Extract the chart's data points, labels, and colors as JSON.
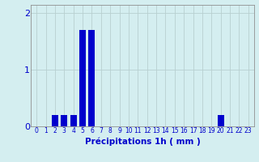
{
  "values": [
    0,
    0,
    0.2,
    0.2,
    0.2,
    1.7,
    1.7,
    0,
    0,
    0,
    0,
    0,
    0,
    0,
    0,
    0,
    0,
    0,
    0,
    0,
    0.2,
    0,
    0,
    0
  ],
  "bar_color": "#0000cc",
  "background_color": "#d4eef0",
  "grid_color": "#b8d0d0",
  "text_color": "#0000cc",
  "xlabel": "Précipitations 1h ( mm )",
  "ylim": [
    0,
    2.15
  ],
  "yticks": [
    0,
    1,
    2
  ],
  "bar_width": 0.7,
  "tick_labels": [
    "0",
    "1",
    "2",
    "3",
    "4",
    "5",
    "6",
    "7",
    "8",
    "9",
    "10",
    "11",
    "12",
    "13",
    "14",
    "15",
    "16",
    "17",
    "18",
    "19",
    "20",
    "21",
    "22",
    "23"
  ],
  "xlabel_fontsize": 7.5,
  "ytick_fontsize": 8,
  "xtick_fontsize": 5.5
}
